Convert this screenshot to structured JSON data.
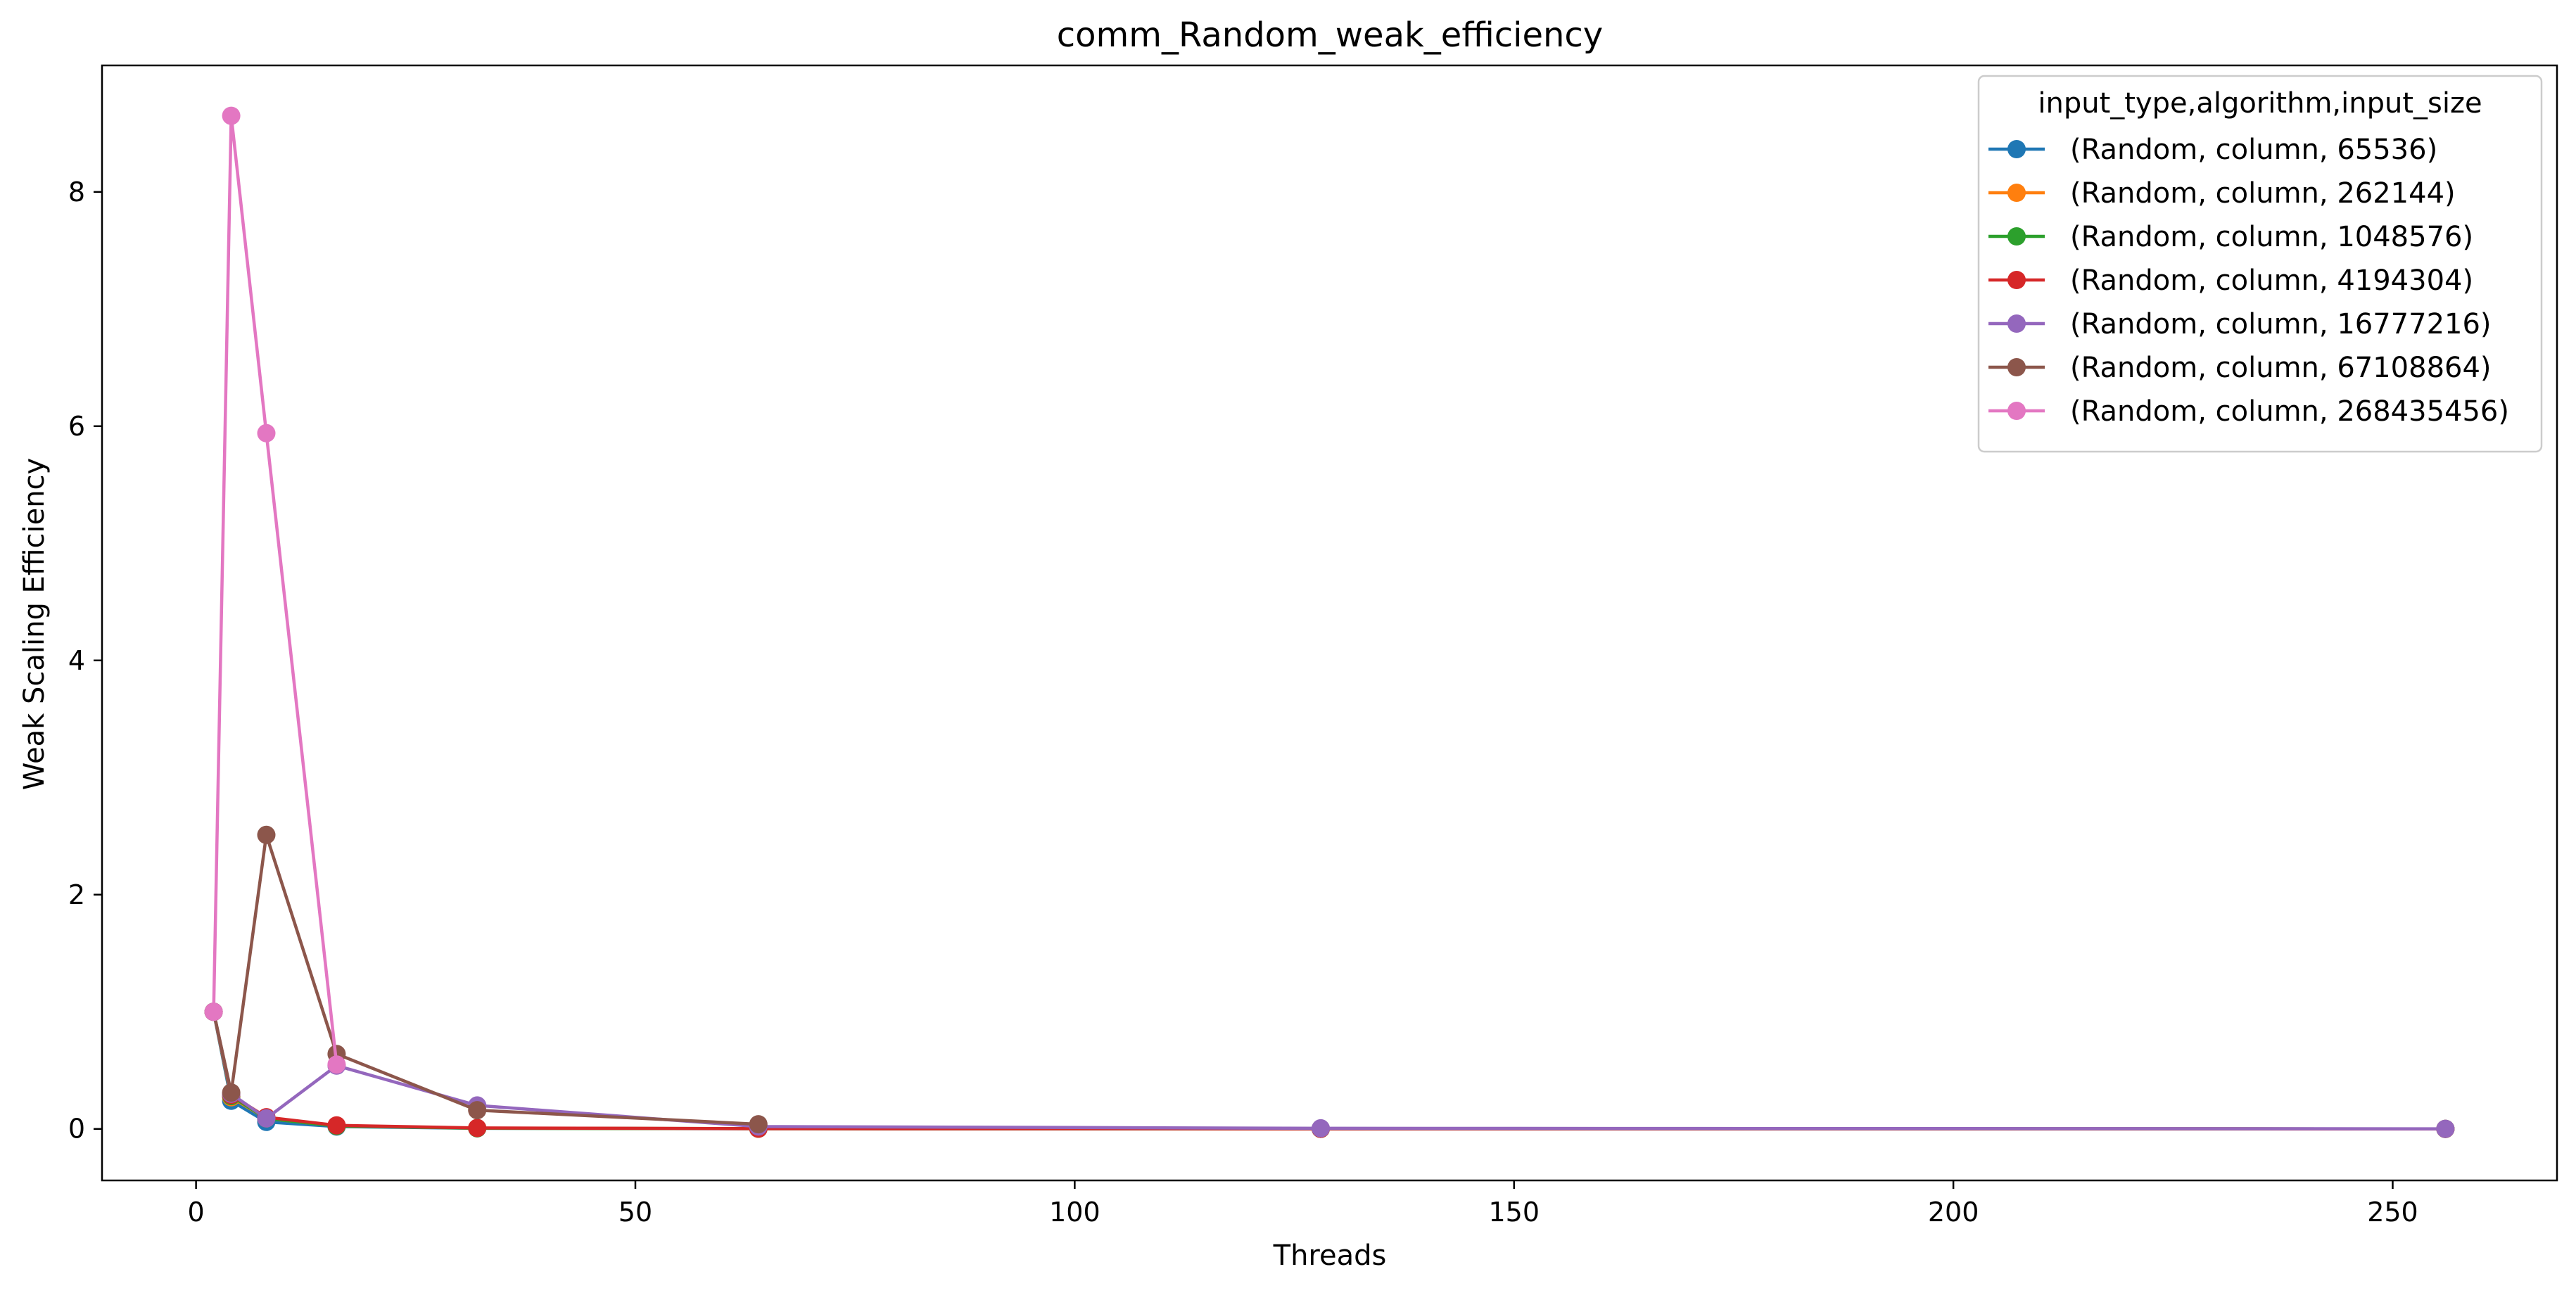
{
  "chart_data": {
    "type": "line",
    "title": "comm_Random_weak_efficiency",
    "xlabel": "Threads",
    "ylabel": "Weak Scaling Efficiency",
    "xlim": [
      -10.7,
      268.7
    ],
    "ylim": [
      -0.44,
      9.08
    ],
    "xticks": [
      0,
      50,
      100,
      150,
      200,
      250
    ],
    "yticks": [
      0,
      2,
      4,
      6,
      8
    ],
    "grid": false,
    "legend": {
      "title": "input_type,algorithm,input_size",
      "placement": "top-right"
    },
    "series": [
      {
        "name": "(Random, column, 65536)",
        "color": "#1f77b4",
        "x": [
          2,
          4,
          8,
          16,
          32,
          64,
          128,
          256
        ],
        "y": [
          1.0,
          0.24,
          0.06,
          0.02,
          0.005,
          0.002,
          0.001,
          0.0005
        ]
      },
      {
        "name": "(Random, column, 262144)",
        "color": "#ff7f0e",
        "x": [
          2,
          4,
          8,
          16,
          32,
          64,
          128,
          256
        ],
        "y": [
          1.0,
          0.27,
          0.09,
          0.025,
          0.006,
          0.002,
          0.001,
          0.0005
        ]
      },
      {
        "name": "(Random, column, 1048576)",
        "color": "#2ca02c",
        "x": [
          2,
          4,
          8,
          16,
          32,
          64,
          128,
          256
        ],
        "y": [
          1.0,
          0.28,
          0.09,
          0.025,
          0.006,
          0.002,
          0.001,
          0.0005
        ]
      },
      {
        "name": "(Random, column, 4194304)",
        "color": "#d62728",
        "x": [
          2,
          4,
          8,
          16,
          32,
          64,
          128,
          256
        ],
        "y": [
          1.0,
          0.29,
          0.1,
          0.03,
          0.008,
          0.002,
          0.001,
          0.0005
        ]
      },
      {
        "name": "(Random, column, 16777216)",
        "color": "#9467bd",
        "x": [
          2,
          4,
          8,
          16,
          32,
          64,
          128,
          256
        ],
        "y": [
          1.0,
          0.3,
          0.09,
          0.54,
          0.2,
          0.02,
          0.005,
          0.001
        ]
      },
      {
        "name": "(Random, column, 67108864)",
        "color": "#8c564b",
        "x": [
          2,
          4,
          8,
          16,
          32,
          64
        ],
        "y": [
          1.0,
          0.31,
          2.51,
          0.64,
          0.16,
          0.04
        ]
      },
      {
        "name": "(Random, column, 268435456)",
        "color": "#e377c2",
        "x": [
          2,
          4,
          8,
          16
        ],
        "y": [
          1.0,
          8.65,
          5.94,
          0.55
        ]
      }
    ]
  }
}
